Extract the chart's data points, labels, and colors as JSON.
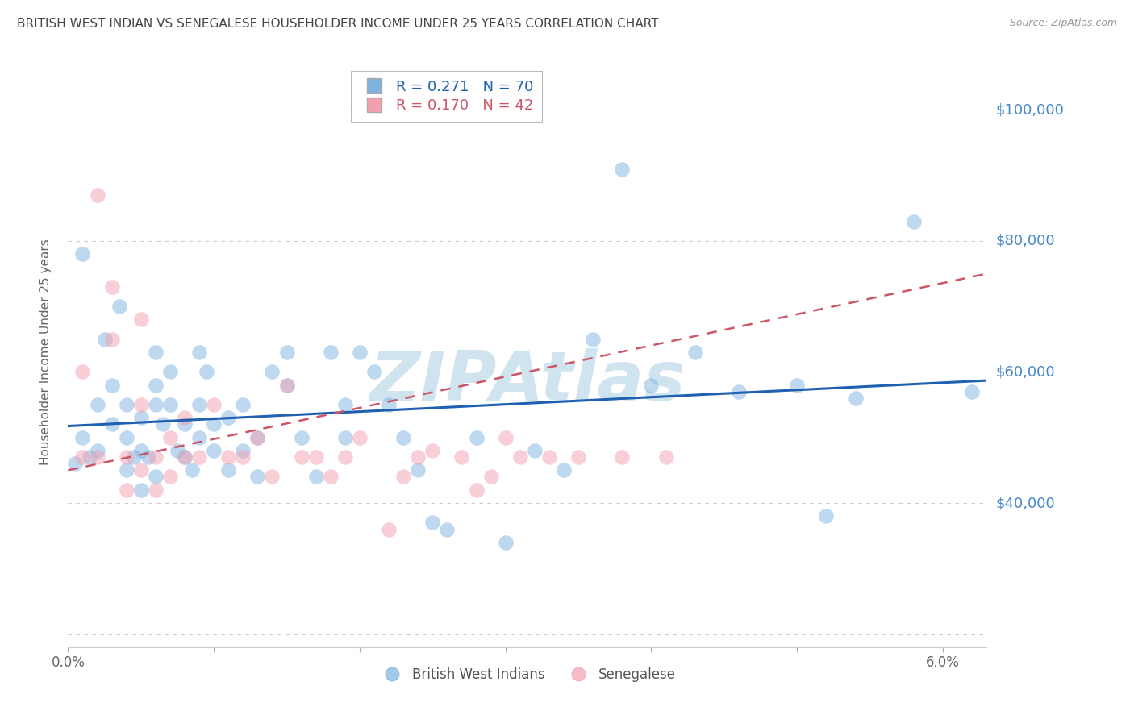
{
  "title": "BRITISH WEST INDIAN VS SENEGALESE HOUSEHOLDER INCOME UNDER 25 YEARS CORRELATION CHART",
  "source": "Source: ZipAtlas.com",
  "ylabel": "Householder Income Under 25 years",
  "legend_labels": [
    "British West Indians",
    "Senegalese"
  ],
  "R_bwi": 0.271,
  "N_bwi": 70,
  "R_sen": 0.17,
  "N_sen": 42,
  "color_bwi": "#7EB3E0",
  "color_sen": "#F5A0B0",
  "trendline_color_bwi": "#2060B0",
  "trendline_color_sen": "#CC5566",
  "right_label_color": "#4488CC",
  "title_color": "#444444",
  "source_color": "#999999",
  "watermark_color": "#D0E4F0",
  "xlim": [
    0.0,
    0.063
  ],
  "ylim": [
    18000,
    108000
  ],
  "yticks": [
    20000,
    40000,
    60000,
    80000,
    100000
  ],
  "right_ytick_labels": {
    "40000": "$40,000",
    "60000": "$60,000",
    "80000": "$80,000",
    "100000": "$100,000"
  },
  "xticks": [
    0.0,
    0.01,
    0.02,
    0.03,
    0.04,
    0.05,
    0.06
  ],
  "xtick_labels": [
    "0.0%",
    "",
    "",
    "",
    "",
    "",
    "6.0%"
  ],
  "bwi_x": [
    0.0005,
    0.001,
    0.001,
    0.0015,
    0.002,
    0.002,
    0.0025,
    0.003,
    0.003,
    0.0035,
    0.004,
    0.004,
    0.004,
    0.0045,
    0.005,
    0.005,
    0.005,
    0.0055,
    0.006,
    0.006,
    0.006,
    0.006,
    0.0065,
    0.007,
    0.007,
    0.0075,
    0.008,
    0.008,
    0.0085,
    0.009,
    0.009,
    0.009,
    0.0095,
    0.01,
    0.01,
    0.011,
    0.011,
    0.012,
    0.012,
    0.013,
    0.013,
    0.014,
    0.015,
    0.015,
    0.016,
    0.017,
    0.018,
    0.019,
    0.019,
    0.02,
    0.021,
    0.022,
    0.023,
    0.024,
    0.025,
    0.026,
    0.028,
    0.03,
    0.032,
    0.034,
    0.036,
    0.038,
    0.04,
    0.043,
    0.046,
    0.05,
    0.052,
    0.054,
    0.058,
    0.062
  ],
  "bwi_y": [
    46000,
    78000,
    50000,
    47000,
    55000,
    48000,
    65000,
    58000,
    52000,
    70000,
    55000,
    50000,
    45000,
    47000,
    42000,
    48000,
    53000,
    47000,
    63000,
    58000,
    55000,
    44000,
    52000,
    55000,
    60000,
    48000,
    52000,
    47000,
    45000,
    55000,
    63000,
    50000,
    60000,
    48000,
    52000,
    45000,
    53000,
    48000,
    55000,
    50000,
    44000,
    60000,
    63000,
    58000,
    50000,
    44000,
    63000,
    55000,
    50000,
    63000,
    60000,
    55000,
    50000,
    45000,
    37000,
    36000,
    50000,
    34000,
    48000,
    45000,
    65000,
    91000,
    58000,
    63000,
    57000,
    58000,
    38000,
    56000,
    83000,
    57000
  ],
  "sen_x": [
    0.001,
    0.001,
    0.002,
    0.002,
    0.003,
    0.003,
    0.004,
    0.004,
    0.005,
    0.005,
    0.005,
    0.006,
    0.006,
    0.007,
    0.007,
    0.008,
    0.008,
    0.009,
    0.01,
    0.011,
    0.012,
    0.013,
    0.014,
    0.015,
    0.016,
    0.017,
    0.018,
    0.019,
    0.02,
    0.022,
    0.023,
    0.024,
    0.025,
    0.027,
    0.028,
    0.029,
    0.03,
    0.031,
    0.033,
    0.035,
    0.038,
    0.041
  ],
  "sen_y": [
    60000,
    47000,
    87000,
    47000,
    73000,
    65000,
    47000,
    42000,
    68000,
    55000,
    45000,
    47000,
    42000,
    50000,
    44000,
    47000,
    53000,
    47000,
    55000,
    47000,
    47000,
    50000,
    44000,
    58000,
    47000,
    47000,
    44000,
    47000,
    50000,
    36000,
    44000,
    47000,
    48000,
    47000,
    42000,
    44000,
    50000,
    47000,
    47000,
    47000,
    47000,
    47000
  ]
}
